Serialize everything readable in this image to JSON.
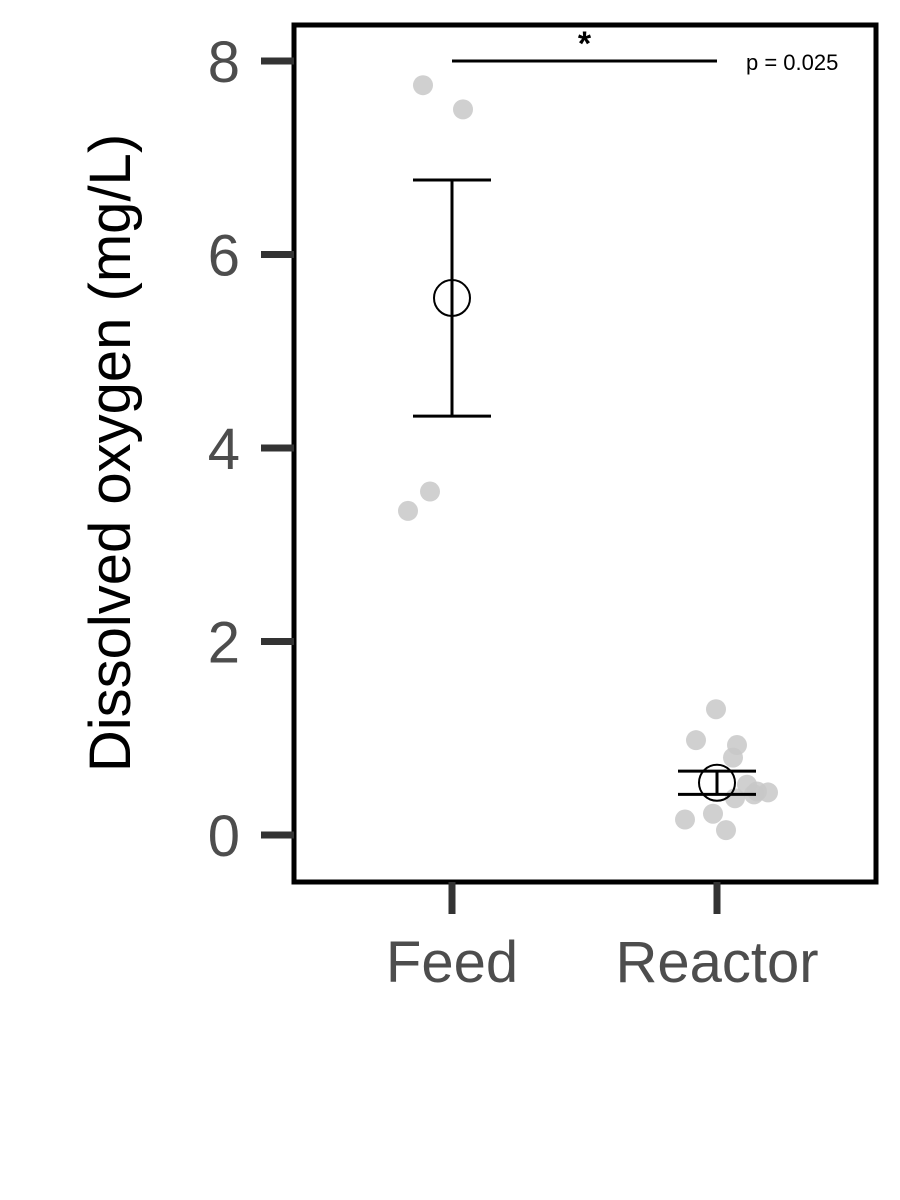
{
  "chart_data": {
    "type": "scatter",
    "title": "",
    "xlabel": "",
    "ylabel": "Dissolved oxygen (mg/L)",
    "ylim": [
      -0.5,
      8.4
    ],
    "yticks": [
      0,
      2,
      4,
      6,
      8
    ],
    "ytick_labels": [
      "0",
      "2",
      "4",
      "6",
      "8"
    ],
    "categories": [
      "Feed",
      "Reactor"
    ],
    "grid": false,
    "legend": "none",
    "colors": {
      "points": "#c8c8c8",
      "summary": "#000000",
      "axis": "#333333",
      "tick_labels": "#4d4d4d"
    },
    "groups": [
      {
        "category": "Feed",
        "points": [
          7.75,
          7.5,
          3.55,
          3.35
        ],
        "mean": 5.55,
        "error_low": 4.33,
        "error_high": 6.77
      },
      {
        "category": "Reactor",
        "points": [
          1.3,
          0.98,
          0.93,
          0.8,
          0.52,
          0.45,
          0.44,
          0.42,
          0.38,
          0.22,
          0.16,
          0.05
        ],
        "mean": 0.54,
        "error_low": 0.42,
        "error_high": 0.66
      }
    ],
    "annotation": {
      "between": [
        "Feed",
        "Reactor"
      ],
      "y": 8.0,
      "significance": "*",
      "p_value": "p = 0.025"
    }
  }
}
